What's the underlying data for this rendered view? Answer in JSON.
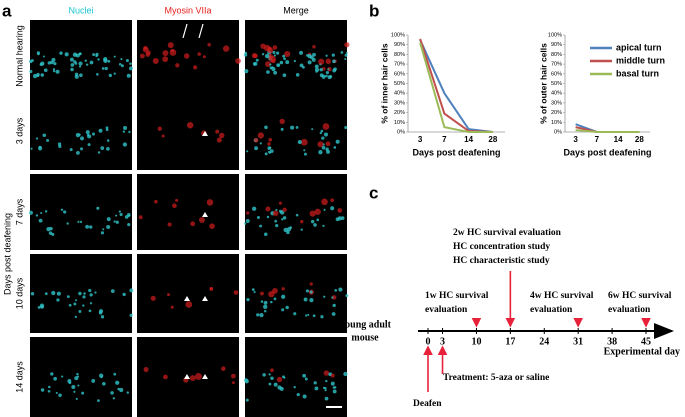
{
  "panel_a": {
    "label": "a",
    "columns": [
      "Nuclei",
      "Myosin VIIa",
      "Merge"
    ],
    "rows": [
      "Normal hearing",
      "3 days",
      "7 days",
      "10 days",
      "14 days"
    ],
    "group_label": "Days post deafening"
  },
  "panel_b_label": "b",
  "chart_data": [
    {
      "type": "line",
      "ylabel": "% of inner hair cells",
      "xlabel": "Days post deafening",
      "categories": [
        "3",
        "7",
        "14",
        "28"
      ],
      "ylim": [
        0,
        100
      ],
      "yticks": [
        {
          "value": 0,
          "label": "0%"
        },
        {
          "value": 10,
          "label": "10%"
        },
        {
          "value": 20,
          "label": "20%"
        },
        {
          "value": 30,
          "label": "30%"
        },
        {
          "value": 40,
          "label": "40%"
        },
        {
          "value": 50,
          "label": "50%"
        },
        {
          "value": 60,
          "label": "60%"
        },
        {
          "value": 70,
          "label": "70%"
        },
        {
          "value": 80,
          "label": "80%"
        },
        {
          "value": 90,
          "label": "90%"
        },
        {
          "value": 100,
          "label": "100%"
        }
      ],
      "series": [
        {
          "name": "apical turn",
          "color": "#4f81bd",
          "values": [
            95,
            40,
            3,
            0
          ]
        },
        {
          "name": "middle turn",
          "color": "#c0504d",
          "values": [
            96,
            19,
            1,
            0
          ]
        },
        {
          "name": "basal turn",
          "color": "#9bbb59",
          "values": [
            92,
            5,
            0,
            0
          ]
        }
      ]
    },
    {
      "type": "line",
      "ylabel": "% of outer hair cells",
      "xlabel": "Days post deafening",
      "categories": [
        "3",
        "7",
        "14",
        "28"
      ],
      "ylim": [
        0,
        100
      ],
      "yticks": [
        {
          "value": 0,
          "label": "0%"
        },
        {
          "value": 10,
          "label": "10%"
        },
        {
          "value": 20,
          "label": "20%"
        },
        {
          "value": 30,
          "label": "30%"
        },
        {
          "value": 40,
          "label": "40%"
        },
        {
          "value": 50,
          "label": "50%"
        },
        {
          "value": 60,
          "label": "60%"
        },
        {
          "value": 70,
          "label": "70%"
        },
        {
          "value": 80,
          "label": "80%"
        },
        {
          "value": 90,
          "label": "90%"
        },
        {
          "value": 100,
          "label": "100%"
        }
      ],
      "legend": "upper right",
      "series": [
        {
          "name": "apical turn",
          "color": "#4f81bd",
          "values": [
            8,
            0,
            0,
            0
          ]
        },
        {
          "name": "middle turn",
          "color": "#c0504d",
          "values": [
            5,
            0,
            0,
            0
          ]
        },
        {
          "name": "basal turn",
          "color": "#9bbb59",
          "values": [
            2,
            0,
            0,
            0
          ]
        }
      ]
    }
  ],
  "panel_c": {
    "label": "c",
    "start_label": [
      "Young adult",
      "mouse"
    ],
    "axis_label": "Experimental day",
    "days": [
      0,
      3,
      10,
      17,
      24,
      31,
      38,
      45
    ],
    "events": [
      {
        "day": 10,
        "lines": [
          "1w HC survival",
          "evaluation"
        ]
      },
      {
        "day": 17,
        "lines": [
          "2w HC survival evaluation",
          "HC concentration study",
          "HC characteristic study"
        ]
      },
      {
        "day": 31,
        "lines": [
          "4w HC survival",
          "evaluation"
        ]
      },
      {
        "day": 45,
        "lines": [
          "6w HC survival",
          "evaluation"
        ]
      }
    ],
    "below": [
      {
        "day": 0,
        "text": "Deafen"
      },
      {
        "day": 3,
        "text": "Treatment: 5-aza or saline"
      }
    ]
  }
}
